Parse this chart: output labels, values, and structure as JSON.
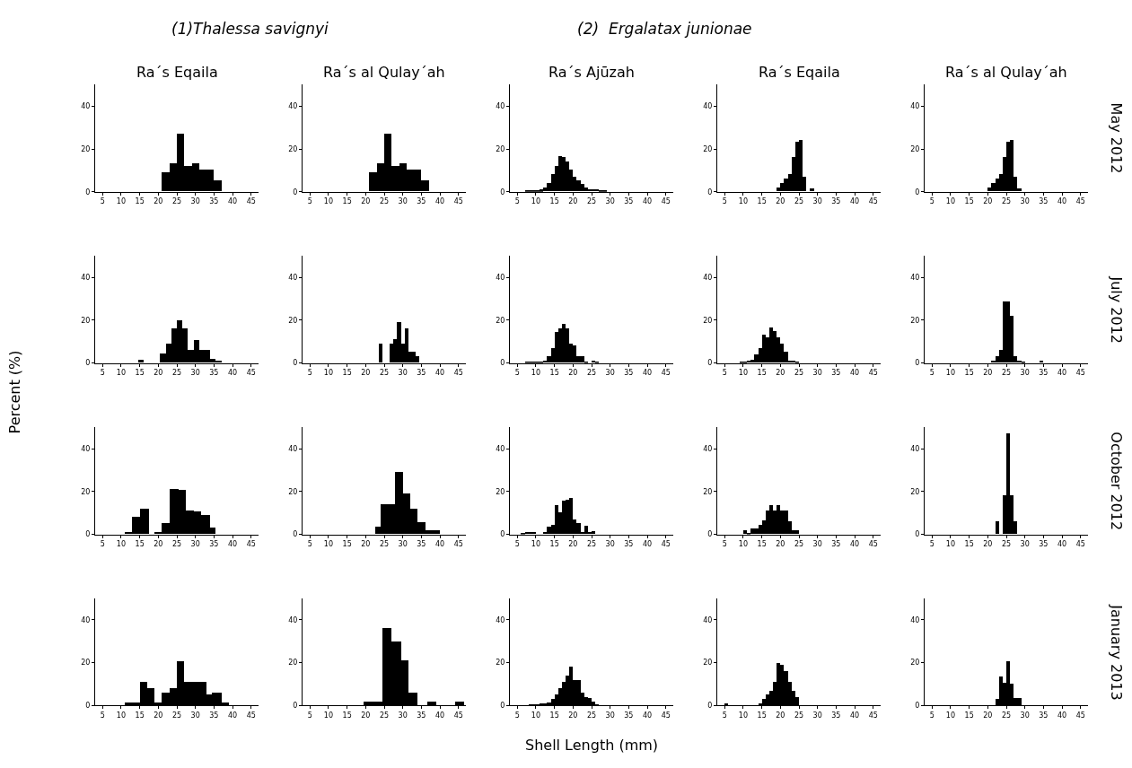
{
  "chart_data": [
    {
      "type": "histogram",
      "title": "Ra´s Eqaila",
      "subtitle": "(1)Thalessa savignyi",
      "color": "#000000",
      "bins": [
        21,
        23,
        25,
        27,
        29,
        31,
        33,
        35,
        37
      ],
      "values": [
        9,
        13,
        27,
        12,
        13,
        10,
        10,
        5
      ],
      "xlim": [
        3,
        47
      ],
      "xticks": [
        5,
        10,
        15,
        20,
        25,
        30,
        35,
        40,
        45
      ],
      "ylim": [
        0,
        50
      ],
      "yticks": [
        0,
        20,
        40
      ]
    },
    {
      "type": "histogram",
      "title": "Ra´s al Qulay´ah",
      "color": "#000000",
      "bins": [
        21,
        23,
        25,
        27,
        29,
        31,
        33,
        35,
        37
      ],
      "values": [
        9,
        13,
        27,
        12,
        13,
        10,
        10,
        5
      ],
      "xlim": [
        3,
        47
      ],
      "xticks": [
        5,
        10,
        15,
        20,
        25,
        30,
        35,
        40,
        45
      ],
      "ylim": [
        0,
        50
      ],
      "yticks": [
        0,
        20,
        40
      ]
    },
    {
      "type": "histogram",
      "title": "Ra´s Ajūzah",
      "subtitle": "(2)  Ergalatax junionae",
      "color": "#000000",
      "bins": [
        7,
        8,
        9,
        10,
        11,
        12,
        13,
        14,
        15,
        16,
        17,
        18,
        19,
        20,
        21,
        22,
        23,
        24,
        25,
        26,
        27,
        28,
        29
      ],
      "values": [
        0.3,
        0.3,
        0.3,
        0.5,
        0.8,
        2,
        4,
        8,
        12,
        16.5,
        16,
        14,
        10,
        7,
        5,
        3.5,
        2,
        1,
        1,
        1,
        0.5,
        0.5
      ],
      "xlim": [
        3,
        47
      ],
      "xticks": [
        5,
        10,
        15,
        20,
        25,
        30,
        35,
        40,
        45
      ],
      "ylim": [
        0,
        50
      ],
      "yticks": [
        0,
        20,
        40
      ]
    },
    {
      "type": "histogram",
      "title": "Ra´s Eqaila",
      "color": "#000000",
      "bins": [
        19,
        20,
        21,
        22,
        23,
        24,
        25,
        26,
        27,
        28,
        29
      ],
      "values": [
        2,
        4,
        6,
        8,
        16,
        23,
        24,
        7,
        0,
        1.5
      ],
      "xlim": [
        3,
        47
      ],
      "xticks": [
        5,
        10,
        15,
        20,
        25,
        30,
        35,
        40,
        45
      ],
      "ylim": [
        0,
        50
      ],
      "yticks": [
        0,
        20,
        40
      ]
    },
    {
      "type": "histogram",
      "title": "Ra´s al Qulay´ah",
      "annotations": [
        "May 2012"
      ],
      "color": "#000000",
      "bins": [
        20,
        21,
        22,
        23,
        24,
        25,
        26,
        27,
        28,
        29
      ],
      "values": [
        2,
        4,
        6,
        8,
        16,
        23,
        24,
        7,
        1.5
      ],
      "xlim": [
        3,
        47
      ],
      "xticks": [
        5,
        10,
        15,
        20,
        25,
        30,
        35,
        40,
        45
      ],
      "ylim": [
        0,
        50
      ],
      "yticks": [
        0,
        20,
        40
      ]
    },
    {
      "type": "histogram",
      "color": "#000000",
      "bins": [
        14.5,
        16,
        17.5,
        19,
        20.5,
        22,
        23.5,
        25,
        26.5,
        28,
        29.5,
        31,
        32.5,
        34,
        35.5,
        37
      ],
      "values": [
        1.5,
        0,
        0,
        0,
        4.5,
        9,
        16,
        20,
        16,
        6,
        10.5,
        6,
        6,
        2,
        1
      ],
      "xlim": [
        3,
        47
      ],
      "xticks": [
        5,
        10,
        15,
        20,
        25,
        30,
        35,
        40,
        45
      ],
      "ylim": [
        0,
        50
      ],
      "yticks": [
        0,
        20,
        40
      ],
      "ylabel": "Percent (%)"
    },
    {
      "type": "histogram",
      "color": "#000000",
      "bins": [
        23.5,
        24.5,
        25.5,
        26.5,
        27.5,
        28.5,
        29.5,
        30.5,
        31.5,
        32.5,
        33.5,
        34.5
      ],
      "values": [
        9,
        0,
        0,
        9,
        11,
        19,
        9,
        16,
        5,
        5,
        3
      ],
      "xlim": [
        3,
        47
      ],
      "xticks": [
        5,
        10,
        15,
        20,
        25,
        30,
        35,
        40,
        45
      ],
      "ylim": [
        0,
        50
      ],
      "yticks": [
        0,
        20,
        40
      ]
    },
    {
      "type": "histogram",
      "color": "#000000",
      "bins": [
        7,
        8,
        9,
        10,
        11,
        12,
        13,
        14,
        15,
        16,
        17,
        18,
        19,
        20,
        21,
        22,
        23,
        24,
        25,
        26,
        27
      ],
      "values": [
        0.2,
        0.2,
        0.2,
        0.3,
        0.5,
        1,
        3,
        7,
        14.5,
        16,
        18,
        16,
        9,
        8,
        3,
        3,
        0.5,
        0,
        1,
        0.3
      ],
      "xlim": [
        3,
        47
      ],
      "xticks": [
        5,
        10,
        15,
        20,
        25,
        30,
        35,
        40,
        45
      ],
      "ylim": [
        0,
        50
      ],
      "yticks": [
        0,
        20,
        40
      ]
    },
    {
      "type": "histogram",
      "color": "#000000",
      "bins": [
        9,
        10,
        11,
        12,
        13,
        14,
        15,
        16,
        17,
        18,
        19,
        20,
        21,
        22,
        23,
        24,
        25
      ],
      "values": [
        0.3,
        0.5,
        1,
        1.5,
        4,
        7,
        13,
        12,
        16.5,
        15,
        12,
        9,
        5,
        1,
        1,
        0.3
      ],
      "xlim": [
        3,
        47
      ],
      "xticks": [
        5,
        10,
        15,
        20,
        25,
        30,
        35,
        40,
        45
      ],
      "ylim": [
        0,
        50
      ],
      "yticks": [
        0,
        20,
        40
      ]
    },
    {
      "type": "histogram",
      "annotations": [
        "July 2012"
      ],
      "color": "#000000",
      "bins": [
        21,
        22,
        23,
        24,
        25,
        26,
        27,
        28,
        29,
        30,
        31,
        32,
        33,
        34,
        35
      ],
      "values": [
        1,
        3,
        6,
        28.5,
        28.5,
        22,
        3,
        1,
        0.5,
        0,
        0,
        0,
        0,
        1
      ],
      "xlim": [
        3,
        47
      ],
      "xticks": [
        5,
        10,
        15,
        20,
        25,
        30,
        35,
        40,
        45
      ],
      "ylim": [
        0,
        50
      ],
      "yticks": [
        0,
        20,
        40
      ]
    },
    {
      "type": "histogram",
      "color": "#000000",
      "bins": [
        11,
        13,
        15,
        17.5,
        19,
        21,
        23,
        25.5,
        27.5,
        29.5,
        31.5,
        34,
        35.5
      ],
      "values": [
        1,
        8,
        12,
        0,
        1,
        5,
        21,
        20.5,
        11,
        10.5,
        9,
        3
      ],
      "xlim": [
        3,
        47
      ],
      "xticks": [
        5,
        10,
        15,
        20,
        25,
        30,
        35,
        40,
        45
      ],
      "ylim": [
        0,
        50
      ],
      "yticks": [
        0,
        20,
        40
      ]
    },
    {
      "type": "histogram",
      "color": "#000000",
      "bins": [
        22.5,
        24,
        26,
        28,
        30,
        32,
        34,
        36,
        38,
        40
      ],
      "values": [
        3.5,
        14,
        14,
        29,
        19,
        12,
        5.5,
        2,
        2
      ],
      "xlim": [
        3,
        47
      ],
      "xticks": [
        5,
        10,
        15,
        20,
        25,
        30,
        35,
        40,
        45
      ],
      "ylim": [
        0,
        50
      ],
      "yticks": [
        0,
        20,
        40
      ]
    },
    {
      "type": "histogram",
      "color": "#000000",
      "bins": [
        6,
        7,
        8,
        9,
        10,
        11,
        12,
        13,
        14,
        15,
        16,
        17,
        18,
        19,
        20,
        21,
        22,
        23,
        24,
        25,
        26
      ],
      "values": [
        0.3,
        1,
        1,
        1,
        0,
        0,
        1,
        3.5,
        4.5,
        13.5,
        10,
        15.5,
        16,
        17,
        7,
        5,
        1,
        4,
        1,
        1.5
      ],
      "xlim": [
        3,
        47
      ],
      "xticks": [
        5,
        10,
        15,
        20,
        25,
        30,
        35,
        40,
        45
      ],
      "ylim": [
        0,
        50
      ],
      "yticks": [
        0,
        20,
        40
      ]
    },
    {
      "type": "histogram",
      "color": "#000000",
      "bins": [
        10,
        11,
        12,
        13,
        14,
        15,
        16,
        17,
        18,
        19,
        20,
        21,
        22,
        23,
        24,
        25
      ],
      "values": [
        2,
        0.5,
        2.5,
        2.5,
        4.5,
        6.5,
        11,
        13.5,
        11,
        13.5,
        11,
        11,
        6,
        2,
        2
      ],
      "xlim": [
        3,
        47
      ],
      "xticks": [
        5,
        10,
        15,
        20,
        25,
        30,
        35,
        40,
        45
      ],
      "ylim": [
        0,
        50
      ],
      "yticks": [
        0,
        20,
        40
      ]
    },
    {
      "type": "histogram",
      "annotations": [
        "October 2012"
      ],
      "color": "#000000",
      "bins": [
        22,
        23,
        24,
        25,
        26,
        27,
        28
      ],
      "values": [
        6,
        0,
        18,
        47,
        18,
        6
      ],
      "xlim": [
        3,
        47
      ],
      "xticks": [
        5,
        10,
        15,
        20,
        25,
        30,
        35,
        40,
        45
      ],
      "ylim": [
        0,
        50
      ],
      "yticks": [
        0,
        20,
        40
      ]
    },
    {
      "type": "histogram",
      "color": "#000000",
      "bins": [
        11,
        13,
        15,
        17,
        19,
        21,
        23,
        25,
        27,
        29,
        31,
        33,
        34.5,
        37,
        39
      ],
      "values": [
        1.5,
        1.5,
        11,
        8,
        1.5,
        6,
        8,
        20.5,
        11,
        11,
        11,
        5,
        6,
        1.5
      ],
      "xlim": [
        3,
        47
      ],
      "xticks": [
        5,
        10,
        15,
        20,
        25,
        30,
        35,
        40,
        45
      ],
      "ylim": [
        0,
        50
      ],
      "yticks": [
        0,
        20,
        40
      ]
    },
    {
      "type": "histogram",
      "color": "#000000",
      "bins": [
        19.5,
        22,
        24.5,
        27,
        29.5,
        31.5,
        34,
        36.5,
        39,
        44,
        46.5
      ],
      "values": [
        2,
        2,
        36,
        30,
        21,
        6,
        0,
        2,
        0,
        2
      ],
      "xlim": [
        3,
        47
      ],
      "xticks": [
        5,
        10,
        15,
        20,
        25,
        30,
        35,
        40,
        45
      ],
      "ylim": [
        0,
        50
      ],
      "yticks": [
        0,
        20,
        40
      ]
    },
    {
      "type": "histogram",
      "xlabel": "Shell Length (mm)",
      "color": "#000000",
      "bins": [
        8,
        9,
        10,
        11,
        12,
        13,
        14,
        15,
        16,
        17,
        18,
        19,
        20,
        21,
        22,
        23,
        24,
        25,
        26,
        27
      ],
      "values": [
        0.5,
        0.5,
        0.5,
        1,
        1,
        1.5,
        3,
        5,
        8,
        11,
        14,
        18,
        12,
        12,
        6,
        4,
        3.5,
        2,
        0.5
      ],
      "xlim": [
        3,
        47
      ],
      "xticks": [
        5,
        10,
        15,
        20,
        25,
        30,
        35,
        40,
        45
      ],
      "ylim": [
        0,
        50
      ],
      "yticks": [
        0,
        20,
        40
      ]
    },
    {
      "type": "histogram",
      "color": "#000000",
      "bins": [
        5,
        6,
        7,
        8,
        9,
        10,
        11,
        12,
        13,
        14,
        15,
        16,
        17,
        18,
        19,
        20,
        21,
        22,
        23,
        24,
        25
      ],
      "values": [
        1,
        0,
        0,
        0,
        0,
        0,
        0,
        0,
        0,
        1,
        3,
        5,
        7,
        11,
        20,
        19,
        16,
        11,
        7,
        4
      ],
      "xlim": [
        3,
        47
      ],
      "xticks": [
        5,
        10,
        15,
        20,
        25,
        30,
        35,
        40,
        45
      ],
      "ylim": [
        0,
        50
      ],
      "yticks": [
        0,
        20,
        40
      ]
    },
    {
      "type": "histogram",
      "annotations": [
        "January 2013"
      ],
      "color": "#000000",
      "bins": [
        22,
        23,
        24,
        25,
        26,
        27,
        28,
        29
      ],
      "values": [
        3,
        13.5,
        10.5,
        20.5,
        10,
        3.5,
        3.5
      ],
      "xlim": [
        3,
        47
      ],
      "xticks": [
        5,
        10,
        15,
        20,
        25,
        30,
        35,
        40,
        45
      ],
      "ylim": [
        0,
        50
      ],
      "yticks": [
        0,
        20,
        40
      ]
    }
  ]
}
